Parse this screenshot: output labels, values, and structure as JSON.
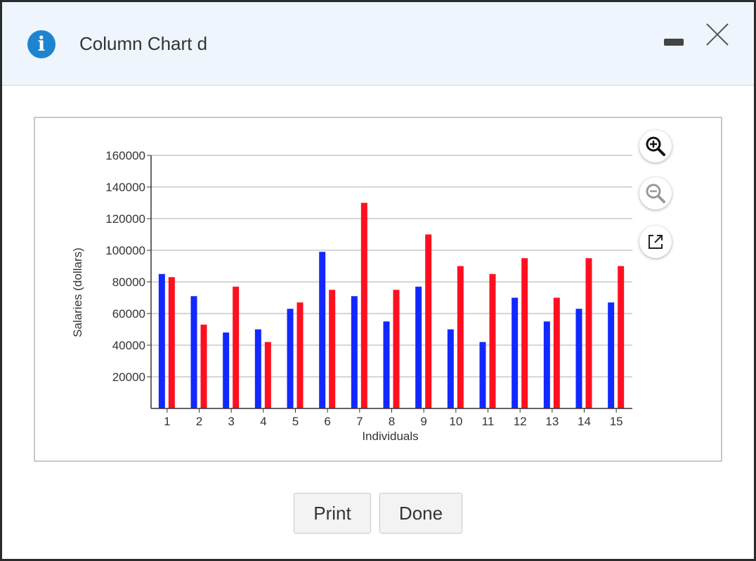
{
  "dialog": {
    "title": "Column Chart d",
    "icons": {
      "info": "info-icon",
      "minimize": "minimize-icon",
      "close": "close-icon"
    }
  },
  "toolbar": {
    "zoom_in_icon": "zoom-in-icon",
    "zoom_out_icon": "zoom-out-icon",
    "popout_icon": "external-link-icon"
  },
  "buttons": {
    "print": "Print",
    "done": "Done"
  },
  "colors": {
    "series_a": "#1228ff",
    "series_b": "#ff1020",
    "accent": "#1f84cf"
  },
  "chart_data": {
    "type": "bar",
    "title": "",
    "xlabel": "Individuals",
    "ylabel": "Salaries (dollars)",
    "categories": [
      "1",
      "2",
      "3",
      "4",
      "5",
      "6",
      "7",
      "8",
      "9",
      "10",
      "11",
      "12",
      "13",
      "14",
      "15"
    ],
    "ylim": [
      0,
      160000
    ],
    "yticks": [
      "20000",
      "40000",
      "60000",
      "80000",
      "100000",
      "120000",
      "140000",
      "160000"
    ],
    "grid": true,
    "series": [
      {
        "values": [
          85000,
          71000,
          48000,
          50000,
          63000,
          99000,
          71000,
          55000,
          77000,
          50000,
          42000,
          70000,
          55000,
          63000,
          67000
        ]
      },
      {
        "values": [
          83000,
          53000,
          77000,
          42000,
          67000,
          75000,
          130000,
          75000,
          110000,
          90000,
          85000,
          95000,
          70000,
          95000,
          90000
        ]
      }
    ]
  }
}
